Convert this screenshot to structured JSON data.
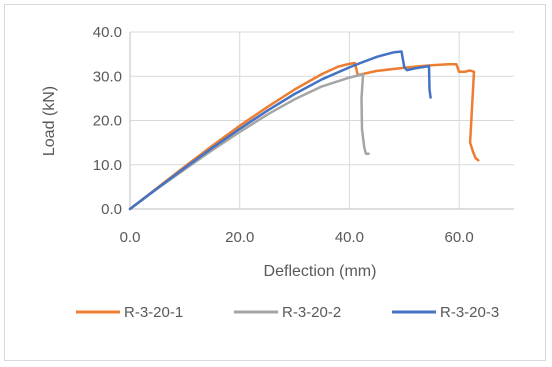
{
  "chart_data": {
    "type": "line",
    "title": "",
    "xlabel": "Deflection (mm)",
    "ylabel": "Load (kN)",
    "xlim": [
      0,
      70
    ],
    "ylim": [
      0,
      40
    ],
    "x_ticks": [
      "0.0",
      "20.0",
      "40.0",
      "60.0"
    ],
    "y_ticks": [
      "0.0",
      "10.0",
      "20.0",
      "30.0",
      "40.0"
    ],
    "grid": "vertical and horizontal major gridlines",
    "legend_position": "bottom",
    "series": [
      {
        "name": "R-3-20-1",
        "color": "#ED7D31",
        "points": [
          [
            0,
            0
          ],
          [
            5,
            4.8
          ],
          [
            10,
            9.6
          ],
          [
            15,
            14.3
          ],
          [
            20,
            18.8
          ],
          [
            25,
            23
          ],
          [
            30,
            27
          ],
          [
            35,
            30.5
          ],
          [
            38,
            32.2
          ],
          [
            40,
            32.8
          ],
          [
            41,
            33
          ],
          [
            41.5,
            30.3
          ],
          [
            42,
            30.4
          ],
          [
            45,
            31.2
          ],
          [
            50,
            31.9
          ],
          [
            53,
            32.3
          ],
          [
            55,
            32.5
          ],
          [
            58,
            32.7
          ],
          [
            59.5,
            32.7
          ],
          [
            60,
            31
          ],
          [
            61,
            31
          ],
          [
            62,
            31.3
          ],
          [
            62.7,
            31
          ],
          [
            62.3,
            22
          ],
          [
            62,
            15
          ],
          [
            62.5,
            13
          ],
          [
            63,
            11.5
          ],
          [
            63.5,
            11
          ]
        ]
      },
      {
        "name": "R-3-20-2",
        "color": "#A5A5A5",
        "points": [
          [
            0,
            0
          ],
          [
            5,
            4.6
          ],
          [
            10,
            9
          ],
          [
            15,
            13.3
          ],
          [
            20,
            17.4
          ],
          [
            25,
            21.3
          ],
          [
            30,
            24.8
          ],
          [
            35,
            27.7
          ],
          [
            40,
            29.7
          ],
          [
            42,
            30.3
          ],
          [
            42.5,
            30.5
          ],
          [
            42.2,
            25
          ],
          [
            42.3,
            18
          ],
          [
            42.7,
            14
          ],
          [
            43,
            12.5
          ],
          [
            43.5,
            12.5
          ]
        ]
      },
      {
        "name": "R-3-20-3",
        "color": "#4472C4",
        "points": [
          [
            0,
            0
          ],
          [
            5,
            4.7
          ],
          [
            10,
            9.3
          ],
          [
            15,
            13.8
          ],
          [
            20,
            18.1
          ],
          [
            25,
            22.2
          ],
          [
            30,
            26
          ],
          [
            35,
            29.3
          ],
          [
            40,
            32
          ],
          [
            42,
            33
          ],
          [
            45,
            34.4
          ],
          [
            48,
            35.4
          ],
          [
            49.5,
            35.6
          ],
          [
            50,
            32
          ],
          [
            50.5,
            31.4
          ],
          [
            52,
            31.8
          ],
          [
            54.5,
            32.3
          ],
          [
            54.6,
            27
          ],
          [
            54.8,
            25.2
          ]
        ]
      }
    ]
  }
}
